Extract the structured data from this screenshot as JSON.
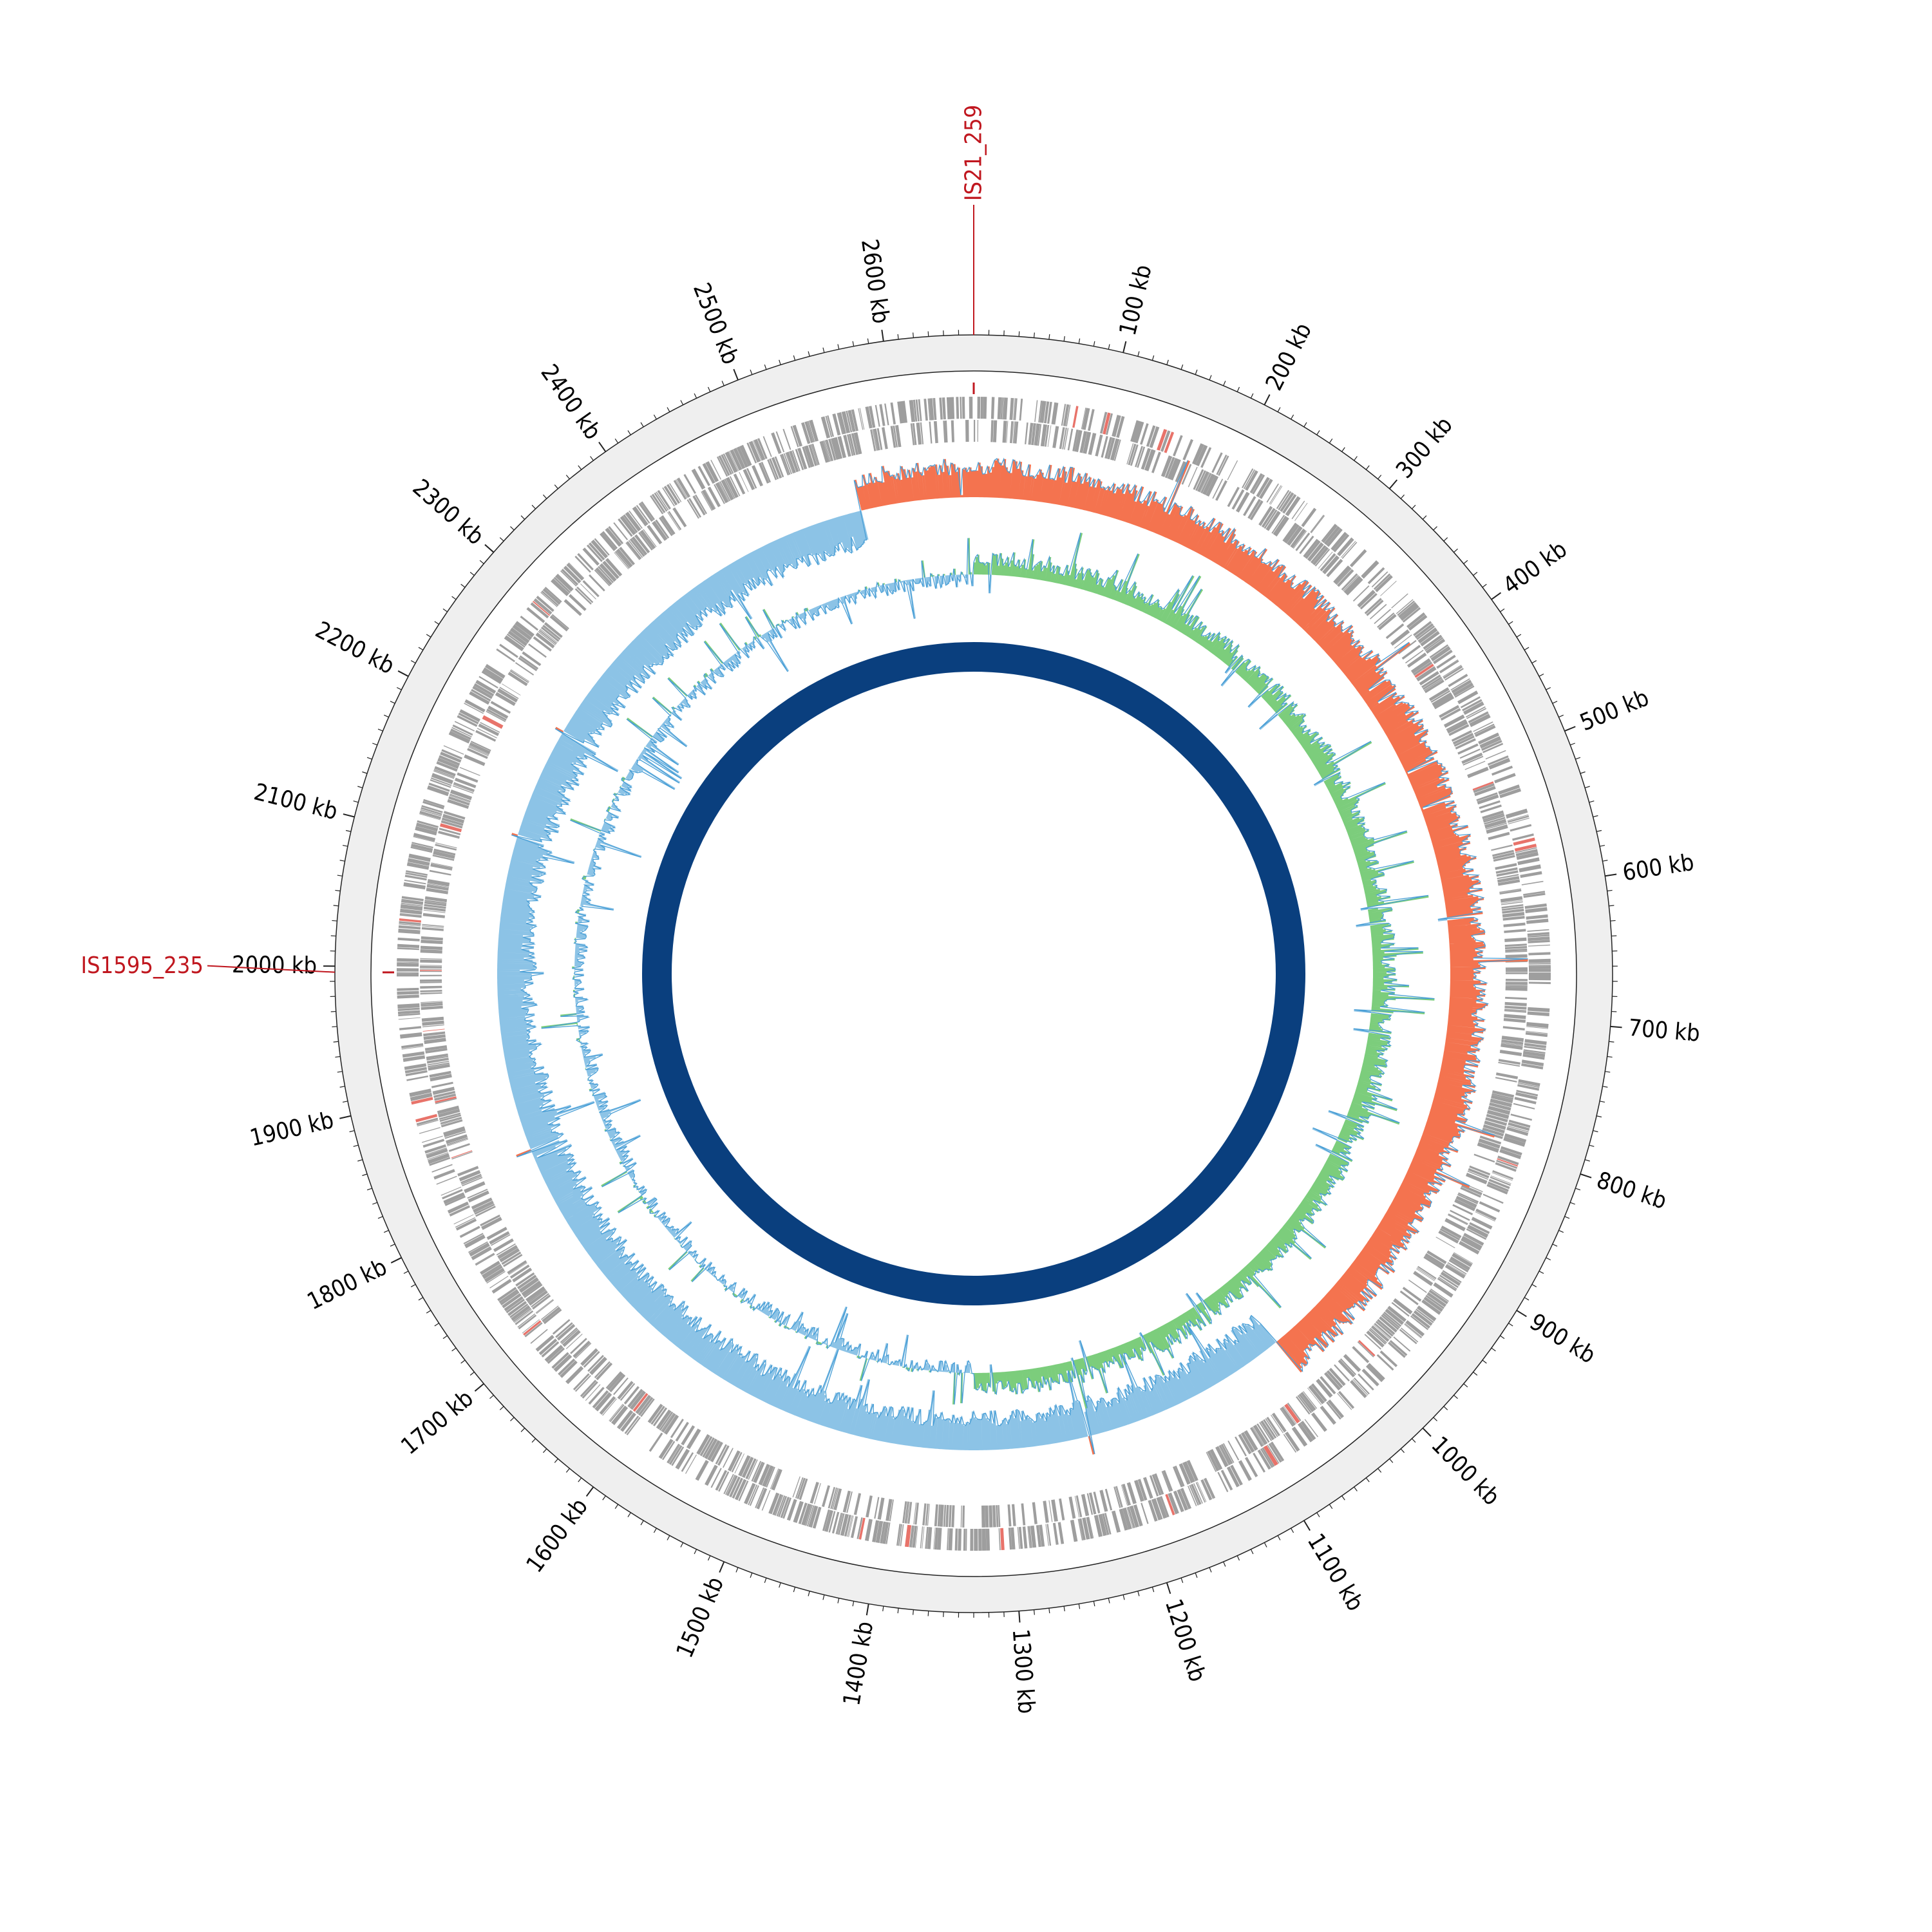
{
  "chart_data": {
    "type": "circular-genome-map",
    "genome_length_kb": 2660,
    "tick_labels": [
      "100 kb",
      "200 kb",
      "300 kb",
      "400 kb",
      "500 kb",
      "600 kb",
      "700 kb",
      "800 kb",
      "900 kb",
      "1000 kb",
      "1100 kb",
      "1200 kb",
      "1300 kb",
      "1400 kb",
      "1500 kb",
      "1600 kb",
      "1700 kb",
      "1800 kb",
      "1900 kb",
      "2000 kb",
      "2100 kb",
      "2200 kb",
      "2300 kb",
      "2400 kb",
      "2500 kb",
      "2600 kb"
    ],
    "tick_positions_kb": [
      100,
      200,
      300,
      400,
      500,
      600,
      700,
      800,
      900,
      1000,
      1100,
      1200,
      1300,
      1400,
      1500,
      1600,
      1700,
      1800,
      1900,
      2000,
      2100,
      2200,
      2300,
      2400,
      2500,
      2600
    ],
    "insertion_sequences": [
      {
        "label": "IS21_259",
        "position_kb": 0
      },
      {
        "label": "IS1595_235",
        "position_kb": 1996
      }
    ],
    "tracks": [
      {
        "id": "is-elements",
        "color": "#d7191c"
      },
      {
        "id": "cds-forward",
        "color": "#a0a0a0"
      },
      {
        "id": "cds-reverse",
        "color": "#a0a0a0"
      },
      {
        "id": "gc-content",
        "positive_color": "#f4734f",
        "negative_color": "#8cc3e6"
      },
      {
        "id": "gc-skew",
        "positive_color": "#7ccd7c",
        "negative_color": "#8cc3e6"
      },
      {
        "id": "backbone",
        "color": "#0a3f7e"
      }
    ]
  },
  "colors": {
    "label_red": "#c0171f",
    "ruler_fill": "#efefef",
    "gene_gray": "#9e9e9e",
    "gene_red": "#e8736a",
    "gc_pos": "#f4734f",
    "gc_neg": "#8cc3e6",
    "gc_line": "#4a9fd6",
    "skew_pos": "#7ccd7c",
    "skew_neg": "#8cc3e6",
    "skew_line": "#4a9fd6",
    "backbone": "#0a3f7e"
  }
}
